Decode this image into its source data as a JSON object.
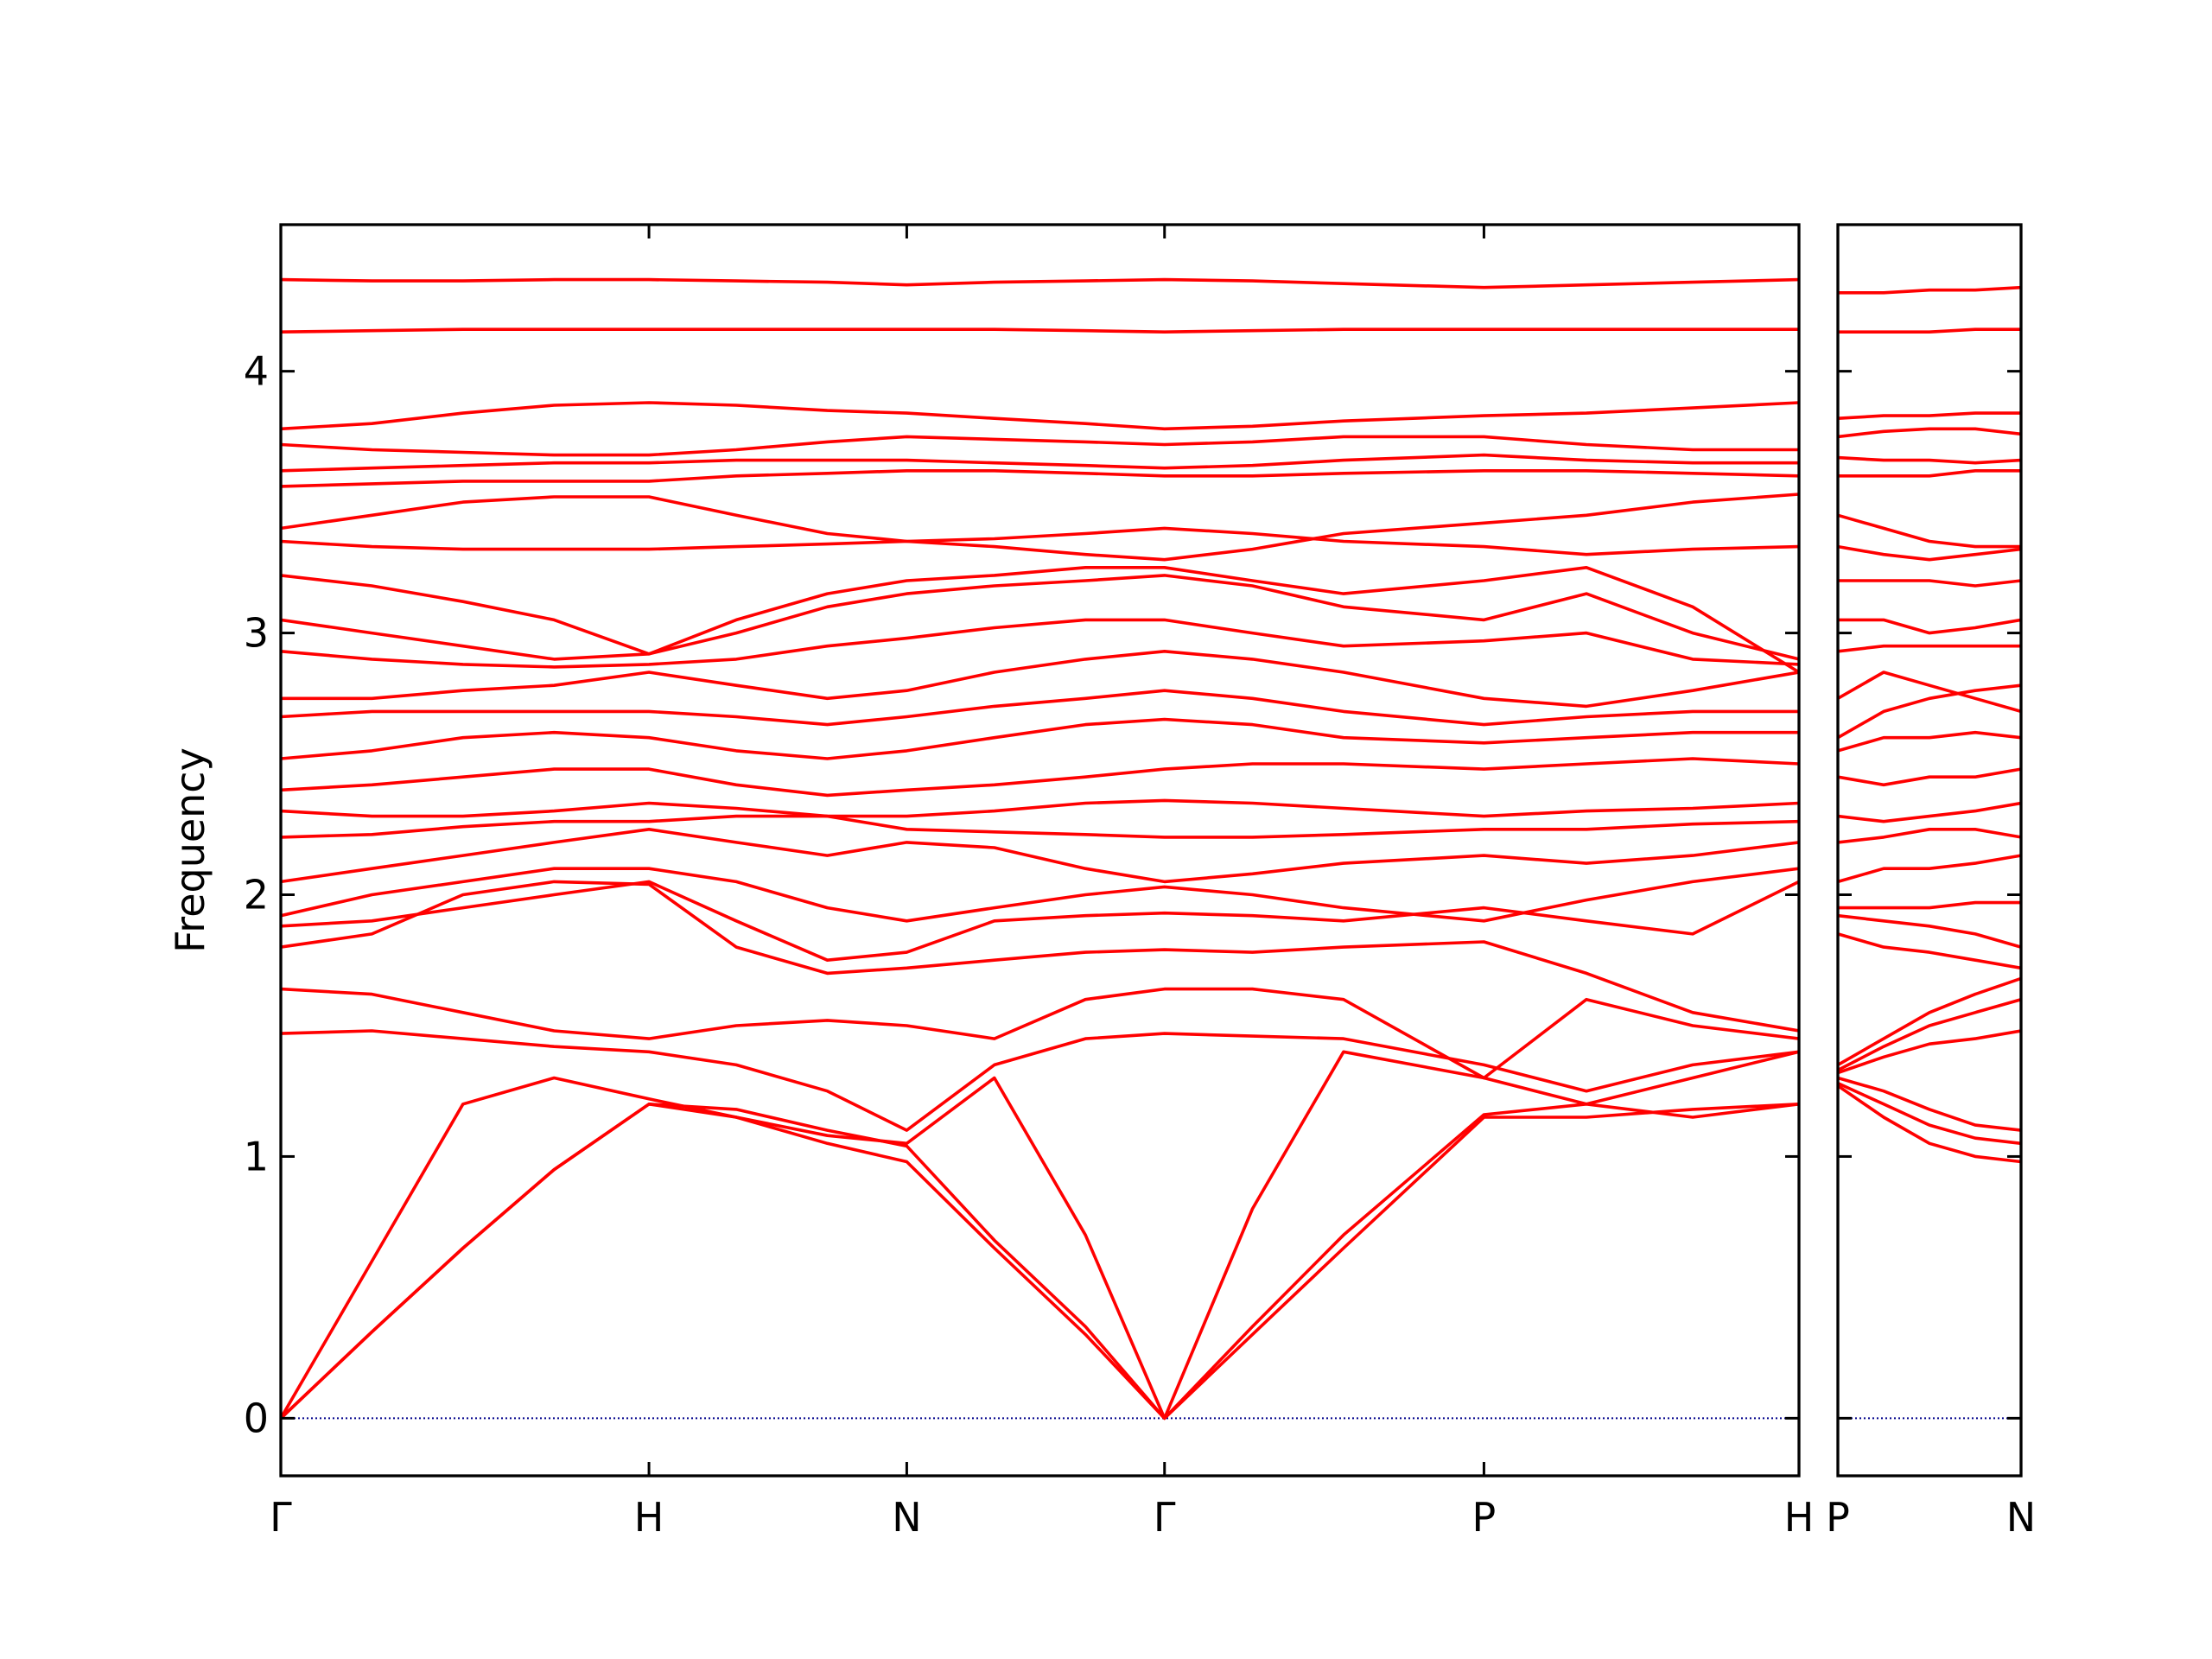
{
  "chart_data": [
    {
      "type": "line",
      "ylabel": "Frequency",
      "color": "#ff0000",
      "x": [
        0,
        0.06,
        0.12,
        0.18,
        0.2425,
        0.3,
        0.36,
        0.4123,
        0.47,
        0.53,
        0.5821,
        0.64,
        0.7,
        0.7925,
        0.86,
        0.93,
        1.0
      ],
      "xlim": [
        0,
        1.0
      ],
      "xticks": [
        {
          "value": 0,
          "label": "Γ"
        },
        {
          "value": 0.2425,
          "label": "H"
        },
        {
          "value": 0.4123,
          "label": "N"
        },
        {
          "value": 0.5821,
          "label": "Γ"
        },
        {
          "value": 0.7925,
          "label": "P"
        },
        {
          "value": 1.0,
          "label": "H"
        }
      ],
      "ylim": [
        -0.22,
        4.56
      ],
      "yticks": [
        0,
        1,
        2,
        3,
        4
      ],
      "ytick_labels": true,
      "hline": {
        "value": 0,
        "color": "#00008b",
        "style": "dotted"
      },
      "series": [
        {
          "values": [
            0,
            0.33,
            0.65,
            0.95,
            1.2,
            1.15,
            1.05,
            0.98,
            0.65,
            0.32,
            0,
            0.32,
            0.65,
            1.15,
            1.15,
            1.18,
            1.2
          ]
        },
        {
          "values": [
            0,
            0.33,
            0.65,
            0.95,
            1.2,
            1.18,
            1.1,
            1.04,
            0.68,
            0.35,
            0,
            0.35,
            0.7,
            1.16,
            1.2,
            1.15,
            1.2
          ]
        },
        {
          "values": [
            0,
            0.6,
            1.2,
            1.3,
            1.22,
            1.15,
            1.08,
            1.05,
            1.3,
            0.7,
            0,
            0.8,
            1.4,
            1.3,
            1.2,
            1.3,
            1.4
          ]
        },
        {
          "values": [
            1.47,
            1.48,
            1.45,
            1.42,
            1.4,
            1.35,
            1.25,
            1.1,
            1.35,
            1.45,
            1.47,
            1.46,
            1.45,
            1.35,
            1.25,
            1.35,
            1.4
          ]
        },
        {
          "values": [
            1.64,
            1.62,
            1.55,
            1.48,
            1.45,
            1.5,
            1.52,
            1.5,
            1.45,
            1.6,
            1.64,
            1.64,
            1.6,
            1.3,
            1.6,
            1.5,
            1.45
          ]
        },
        {
          "values": [
            1.8,
            1.85,
            2.0,
            2.05,
            2.04,
            1.8,
            1.7,
            1.72,
            1.75,
            1.78,
            1.79,
            1.78,
            1.8,
            1.82,
            1.7,
            1.55,
            1.48
          ]
        },
        {
          "values": [
            1.88,
            1.9,
            1.95,
            2.0,
            2.05,
            1.9,
            1.75,
            1.78,
            1.9,
            1.92,
            1.93,
            1.92,
            1.9,
            1.95,
            1.9,
            1.85,
            2.05
          ]
        },
        {
          "values": [
            1.92,
            2.0,
            2.05,
            2.1,
            2.1,
            2.05,
            1.95,
            1.9,
            1.95,
            2.0,
            2.03,
            2.0,
            1.95,
            1.9,
            1.98,
            2.05,
            2.1
          ]
        },
        {
          "values": [
            2.05,
            2.1,
            2.15,
            2.2,
            2.25,
            2.2,
            2.15,
            2.2,
            2.18,
            2.1,
            2.05,
            2.08,
            2.12,
            2.15,
            2.12,
            2.15,
            2.2
          ]
        },
        {
          "values": [
            2.22,
            2.23,
            2.26,
            2.28,
            2.28,
            2.3,
            2.3,
            2.25,
            2.24,
            2.23,
            2.22,
            2.22,
            2.23,
            2.25,
            2.25,
            2.27,
            2.28
          ]
        },
        {
          "values": [
            2.32,
            2.3,
            2.3,
            2.32,
            2.35,
            2.33,
            2.3,
            2.3,
            2.32,
            2.35,
            2.36,
            2.35,
            2.33,
            2.3,
            2.32,
            2.33,
            2.35
          ]
        },
        {
          "values": [
            2.4,
            2.42,
            2.45,
            2.48,
            2.48,
            2.42,
            2.38,
            2.4,
            2.42,
            2.45,
            2.48,
            2.5,
            2.5,
            2.48,
            2.5,
            2.52,
            2.5
          ]
        },
        {
          "values": [
            2.52,
            2.55,
            2.6,
            2.62,
            2.6,
            2.55,
            2.52,
            2.55,
            2.6,
            2.65,
            2.67,
            2.65,
            2.6,
            2.58,
            2.6,
            2.62,
            2.62
          ]
        },
        {
          "values": [
            2.68,
            2.7,
            2.7,
            2.7,
            2.7,
            2.68,
            2.65,
            2.68,
            2.72,
            2.75,
            2.78,
            2.75,
            2.7,
            2.65,
            2.68,
            2.7,
            2.7
          ]
        },
        {
          "values": [
            2.75,
            2.75,
            2.78,
            2.8,
            2.85,
            2.8,
            2.75,
            2.78,
            2.85,
            2.9,
            2.93,
            2.9,
            2.85,
            2.75,
            2.72,
            2.78,
            2.85
          ]
        },
        {
          "values": [
            2.93,
            2.9,
            2.88,
            2.87,
            2.88,
            2.9,
            2.95,
            2.98,
            3.02,
            3.05,
            3.05,
            3.0,
            2.95,
            2.97,
            3.0,
            2.9,
            2.88
          ]
        },
        {
          "values": [
            3.05,
            3.0,
            2.95,
            2.9,
            2.92,
            3.0,
            3.1,
            3.15,
            3.18,
            3.2,
            3.22,
            3.18,
            3.1,
            3.05,
            3.15,
            3.0,
            2.9
          ]
        },
        {
          "values": [
            3.22,
            3.18,
            3.12,
            3.05,
            2.92,
            3.05,
            3.15,
            3.2,
            3.22,
            3.25,
            3.25,
            3.2,
            3.15,
            3.2,
            3.25,
            3.1,
            2.85
          ]
        },
        {
          "values": [
            3.35,
            3.33,
            3.32,
            3.32,
            3.32,
            3.33,
            3.34,
            3.35,
            3.36,
            3.38,
            3.4,
            3.38,
            3.35,
            3.33,
            3.3,
            3.32,
            3.33
          ]
        },
        {
          "values": [
            3.4,
            3.45,
            3.5,
            3.52,
            3.52,
            3.45,
            3.38,
            3.35,
            3.33,
            3.3,
            3.28,
            3.32,
            3.38,
            3.42,
            3.45,
            3.5,
            3.53
          ]
        },
        {
          "values": [
            3.56,
            3.57,
            3.58,
            3.58,
            3.58,
            3.6,
            3.61,
            3.62,
            3.62,
            3.61,
            3.6,
            3.6,
            3.61,
            3.62,
            3.62,
            3.61,
            3.6
          ]
        },
        {
          "values": [
            3.62,
            3.63,
            3.64,
            3.65,
            3.65,
            3.66,
            3.66,
            3.66,
            3.65,
            3.64,
            3.63,
            3.64,
            3.66,
            3.68,
            3.66,
            3.65,
            3.65
          ]
        },
        {
          "values": [
            3.72,
            3.7,
            3.69,
            3.68,
            3.68,
            3.7,
            3.73,
            3.75,
            3.74,
            3.73,
            3.72,
            3.73,
            3.75,
            3.75,
            3.72,
            3.7,
            3.7
          ]
        },
        {
          "values": [
            3.78,
            3.8,
            3.84,
            3.87,
            3.88,
            3.87,
            3.85,
            3.84,
            3.82,
            3.8,
            3.78,
            3.79,
            3.81,
            3.83,
            3.84,
            3.86,
            3.88
          ]
        },
        {
          "values": [
            4.15,
            4.155,
            4.16,
            4.16,
            4.16,
            4.16,
            4.16,
            4.16,
            4.16,
            4.155,
            4.15,
            4.155,
            4.16,
            4.16,
            4.16,
            4.16,
            4.16
          ]
        },
        {
          "values": [
            4.35,
            4.345,
            4.345,
            4.35,
            4.35,
            4.345,
            4.34,
            4.33,
            4.34,
            4.345,
            4.35,
            4.345,
            4.335,
            4.32,
            4.33,
            4.34,
            4.35
          ]
        }
      ]
    },
    {
      "type": "line",
      "color": "#ff0000",
      "x": [
        0,
        0.25,
        0.5,
        0.75,
        1.0
      ],
      "xlim": [
        0,
        1.0
      ],
      "xticks": [
        {
          "value": 0,
          "label": "P"
        },
        {
          "value": 1.0,
          "label": "N"
        }
      ],
      "ylim": [
        -0.22,
        4.56
      ],
      "yticks": [
        0,
        1,
        2,
        3,
        4
      ],
      "ytick_labels": false,
      "hline": {
        "value": 0,
        "color": "#00008b",
        "style": "dotted"
      },
      "series": [
        {
          "values": [
            1.27,
            1.15,
            1.05,
            1.0,
            0.98
          ]
        },
        {
          "values": [
            1.28,
            1.2,
            1.12,
            1.07,
            1.05
          ]
        },
        {
          "values": [
            1.3,
            1.25,
            1.18,
            1.12,
            1.1
          ]
        },
        {
          "values": [
            1.32,
            1.38,
            1.43,
            1.45,
            1.48
          ]
        },
        {
          "values": [
            1.33,
            1.42,
            1.5,
            1.55,
            1.6
          ]
        },
        {
          "values": [
            1.35,
            1.45,
            1.55,
            1.62,
            1.68
          ]
        },
        {
          "values": [
            1.85,
            1.8,
            1.78,
            1.75,
            1.72
          ]
        },
        {
          "values": [
            1.92,
            1.9,
            1.88,
            1.85,
            1.8
          ]
        },
        {
          "values": [
            1.95,
            1.95,
            1.95,
            1.97,
            1.97
          ]
        },
        {
          "values": [
            2.05,
            2.1,
            2.1,
            2.12,
            2.15
          ]
        },
        {
          "values": [
            2.2,
            2.22,
            2.25,
            2.25,
            2.22
          ]
        },
        {
          "values": [
            2.3,
            2.28,
            2.3,
            2.32,
            2.35
          ]
        },
        {
          "values": [
            2.45,
            2.42,
            2.45,
            2.45,
            2.48
          ]
        },
        {
          "values": [
            2.55,
            2.6,
            2.6,
            2.62,
            2.6
          ]
        },
        {
          "values": [
            2.6,
            2.7,
            2.75,
            2.78,
            2.8
          ]
        },
        {
          "values": [
            2.75,
            2.85,
            2.8,
            2.75,
            2.7
          ]
        },
        {
          "values": [
            2.93,
            2.95,
            2.95,
            2.95,
            2.95
          ]
        },
        {
          "values": [
            3.05,
            3.05,
            3.0,
            3.02,
            3.05
          ]
        },
        {
          "values": [
            3.2,
            3.2,
            3.2,
            3.18,
            3.2
          ]
        },
        {
          "values": [
            3.33,
            3.3,
            3.28,
            3.3,
            3.32
          ]
        },
        {
          "values": [
            3.45,
            3.4,
            3.35,
            3.33,
            3.33
          ]
        },
        {
          "values": [
            3.6,
            3.6,
            3.6,
            3.62,
            3.62
          ]
        },
        {
          "values": [
            3.67,
            3.66,
            3.66,
            3.65,
            3.66
          ]
        },
        {
          "values": [
            3.75,
            3.77,
            3.78,
            3.78,
            3.76
          ]
        },
        {
          "values": [
            3.82,
            3.83,
            3.83,
            3.84,
            3.84
          ]
        },
        {
          "values": [
            4.15,
            4.15,
            4.15,
            4.16,
            4.16
          ]
        },
        {
          "values": [
            4.3,
            4.3,
            4.31,
            4.31,
            4.32
          ]
        }
      ]
    }
  ]
}
